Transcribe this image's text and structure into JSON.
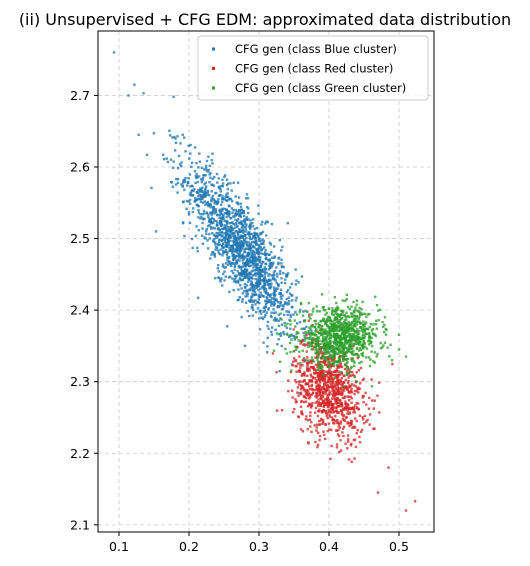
{
  "chart_data": {
    "type": "scatter",
    "title": "(ii) Unsupervised + CFG EDM: approximated data distribution",
    "xlabel": "",
    "ylabel": "",
    "xlim": [
      0.07,
      0.55
    ],
    "ylim": [
      2.09,
      2.79
    ],
    "xticks": [
      0.1,
      0.2,
      0.3,
      0.4,
      0.5
    ],
    "yticks": [
      2.1,
      2.2,
      2.3,
      2.4,
      2.5,
      2.6,
      2.7
    ],
    "xtick_labels": [
      "0.1",
      "0.2",
      "0.3",
      "0.4",
      "0.5"
    ],
    "ytick_labels": [
      "2.1",
      "2.2",
      "2.3",
      "2.4",
      "2.5",
      "2.6",
      "2.7"
    ],
    "grid": true,
    "legend_position": "top-right",
    "series": [
      {
        "name": "CFG gen (class Blue cluster)",
        "color": "#1f77b4",
        "distribution": {
          "x_mean": 0.275,
          "y_mean": 2.485,
          "x_std": 0.04,
          "y_std": 0.06,
          "correlation": -0.82,
          "count": 1500
        },
        "outliers": [
          [
            0.093,
            2.76
          ],
          [
            0.122,
            2.715
          ],
          [
            0.135,
            2.703
          ],
          [
            0.178,
            2.698
          ],
          [
            0.128,
            2.645
          ],
          [
            0.163,
            2.617
          ],
          [
            0.14,
            2.617
          ],
          [
            0.153,
            2.51
          ],
          [
            0.28,
            2.35
          ],
          [
            0.245,
            2.44
          ]
        ]
      },
      {
        "name": "CFG gen (class Red cluster)",
        "color": "#d62728",
        "distribution": {
          "x_mean": 0.4,
          "y_mean": 2.29,
          "x_std": 0.025,
          "y_std": 0.035,
          "correlation": -0.3,
          "count": 900
        },
        "outliers": [
          [
            0.51,
            2.12
          ],
          [
            0.523,
            2.133
          ],
          [
            0.485,
            2.18
          ],
          [
            0.47,
            2.145
          ],
          [
            0.375,
            2.23
          ],
          [
            0.36,
            2.265
          ]
        ]
      },
      {
        "name": "CFG gen (class Green cluster)",
        "color": "#2ca02c",
        "distribution": {
          "x_mean": 0.415,
          "y_mean": 2.362,
          "x_std": 0.028,
          "y_std": 0.02,
          "correlation": 0.0,
          "count": 900
        },
        "outliers": [
          [
            0.51,
            2.335
          ],
          [
            0.5,
            2.345
          ],
          [
            0.49,
            2.33
          ],
          [
            0.36,
            2.41
          ],
          [
            0.345,
            2.38
          ],
          [
            0.48,
            2.39
          ]
        ]
      }
    ]
  }
}
